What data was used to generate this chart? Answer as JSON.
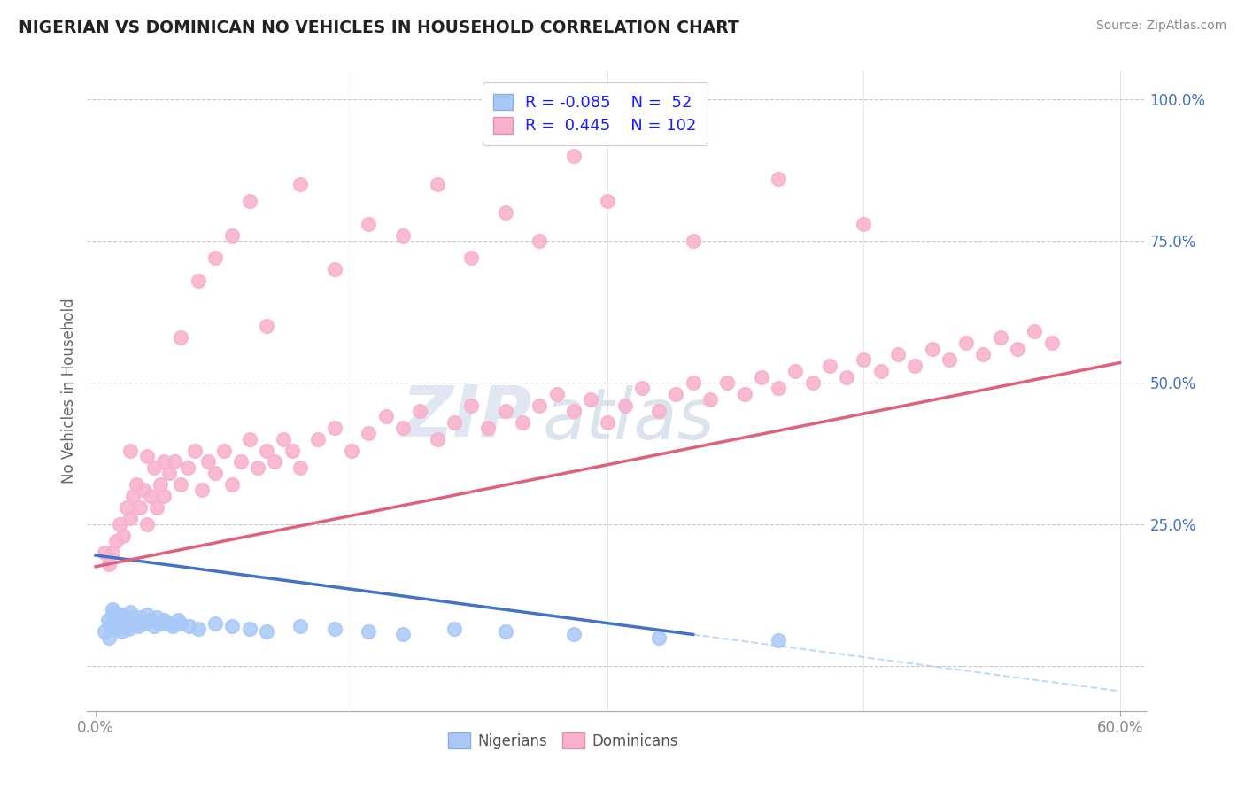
{
  "title": "NIGERIAN VS DOMINICAN NO VEHICLES IN HOUSEHOLD CORRELATION CHART",
  "source": "Source: ZipAtlas.com",
  "ylabel": "No Vehicles in Household",
  "legend_r_nigerian": "-0.085",
  "legend_n_nigerian": "52",
  "legend_r_dominican": "0.445",
  "legend_n_dominican": "102",
  "color_nigerian": "#a8c8f8",
  "color_dominican": "#f8b0cc",
  "color_nigerian_line": "#4472c4",
  "color_dominican_line": "#e06080",
  "color_nigerian_dash": "#a8c8f8",
  "color_title": "#222222",
  "color_grid": "#c8c8c8",
  "color_source": "#888888",
  "color_yticklabels": "#4472c4",
  "color_xticklabels": "#888888",
  "watermark_zip": "ZIP",
  "watermark_atlas": "atlas",
  "xlim": [
    0.0,
    0.6
  ],
  "ylim": [
    -0.08,
    1.05
  ],
  "nigerian_x": [
    0.005,
    0.007,
    0.008,
    0.009,
    0.01,
    0.01,
    0.011,
    0.011,
    0.012,
    0.012,
    0.013,
    0.014,
    0.015,
    0.015,
    0.016,
    0.016,
    0.017,
    0.018,
    0.019,
    0.02,
    0.02,
    0.021,
    0.022,
    0.023,
    0.025,
    0.026,
    0.028,
    0.03,
    0.032,
    0.034,
    0.036,
    0.038,
    0.04,
    0.043,
    0.045,
    0.048,
    0.05,
    0.055,
    0.06,
    0.07,
    0.08,
    0.09,
    0.1,
    0.12,
    0.14,
    0.16,
    0.18,
    0.21,
    0.24,
    0.28,
    0.33,
    0.4
  ],
  "nigerian_y": [
    0.06,
    0.08,
    0.05,
    0.07,
    0.1,
    0.09,
    0.085,
    0.095,
    0.075,
    0.065,
    0.08,
    0.07,
    0.09,
    0.06,
    0.085,
    0.075,
    0.08,
    0.07,
    0.065,
    0.08,
    0.095,
    0.085,
    0.075,
    0.08,
    0.07,
    0.085,
    0.075,
    0.09,
    0.08,
    0.07,
    0.085,
    0.075,
    0.08,
    0.075,
    0.07,
    0.08,
    0.075,
    0.07,
    0.065,
    0.075,
    0.07,
    0.065,
    0.06,
    0.07,
    0.065,
    0.06,
    0.055,
    0.065,
    0.06,
    0.055,
    0.05,
    0.045
  ],
  "dominican_x": [
    0.005,
    0.008,
    0.01,
    0.012,
    0.014,
    0.016,
    0.018,
    0.02,
    0.022,
    0.024,
    0.026,
    0.028,
    0.03,
    0.032,
    0.034,
    0.036,
    0.038,
    0.04,
    0.043,
    0.046,
    0.05,
    0.054,
    0.058,
    0.062,
    0.066,
    0.07,
    0.075,
    0.08,
    0.085,
    0.09,
    0.095,
    0.1,
    0.105,
    0.11,
    0.115,
    0.12,
    0.13,
    0.14,
    0.15,
    0.16,
    0.17,
    0.18,
    0.19,
    0.2,
    0.21,
    0.22,
    0.23,
    0.24,
    0.25,
    0.26,
    0.27,
    0.28,
    0.29,
    0.3,
    0.31,
    0.32,
    0.33,
    0.34,
    0.35,
    0.36,
    0.37,
    0.38,
    0.39,
    0.4,
    0.41,
    0.42,
    0.43,
    0.44,
    0.45,
    0.46,
    0.47,
    0.48,
    0.49,
    0.5,
    0.51,
    0.52,
    0.53,
    0.54,
    0.55,
    0.56,
    0.02,
    0.03,
    0.04,
    0.05,
    0.06,
    0.07,
    0.08,
    0.09,
    0.1,
    0.12,
    0.14,
    0.16,
    0.18,
    0.2,
    0.22,
    0.24,
    0.26,
    0.28,
    0.3,
    0.35,
    0.4,
    0.45
  ],
  "dominican_y": [
    0.2,
    0.18,
    0.2,
    0.22,
    0.25,
    0.23,
    0.28,
    0.26,
    0.3,
    0.32,
    0.28,
    0.31,
    0.25,
    0.3,
    0.35,
    0.28,
    0.32,
    0.3,
    0.34,
    0.36,
    0.32,
    0.35,
    0.38,
    0.31,
    0.36,
    0.34,
    0.38,
    0.32,
    0.36,
    0.4,
    0.35,
    0.38,
    0.36,
    0.4,
    0.38,
    0.35,
    0.4,
    0.42,
    0.38,
    0.41,
    0.44,
    0.42,
    0.45,
    0.4,
    0.43,
    0.46,
    0.42,
    0.45,
    0.43,
    0.46,
    0.48,
    0.45,
    0.47,
    0.43,
    0.46,
    0.49,
    0.45,
    0.48,
    0.5,
    0.47,
    0.5,
    0.48,
    0.51,
    0.49,
    0.52,
    0.5,
    0.53,
    0.51,
    0.54,
    0.52,
    0.55,
    0.53,
    0.56,
    0.54,
    0.57,
    0.55,
    0.58,
    0.56,
    0.59,
    0.57,
    0.38,
    0.37,
    0.36,
    0.58,
    0.68,
    0.72,
    0.76,
    0.82,
    0.6,
    0.85,
    0.7,
    0.78,
    0.76,
    0.85,
    0.72,
    0.8,
    0.75,
    0.9,
    0.82,
    0.75,
    0.86,
    0.78
  ]
}
